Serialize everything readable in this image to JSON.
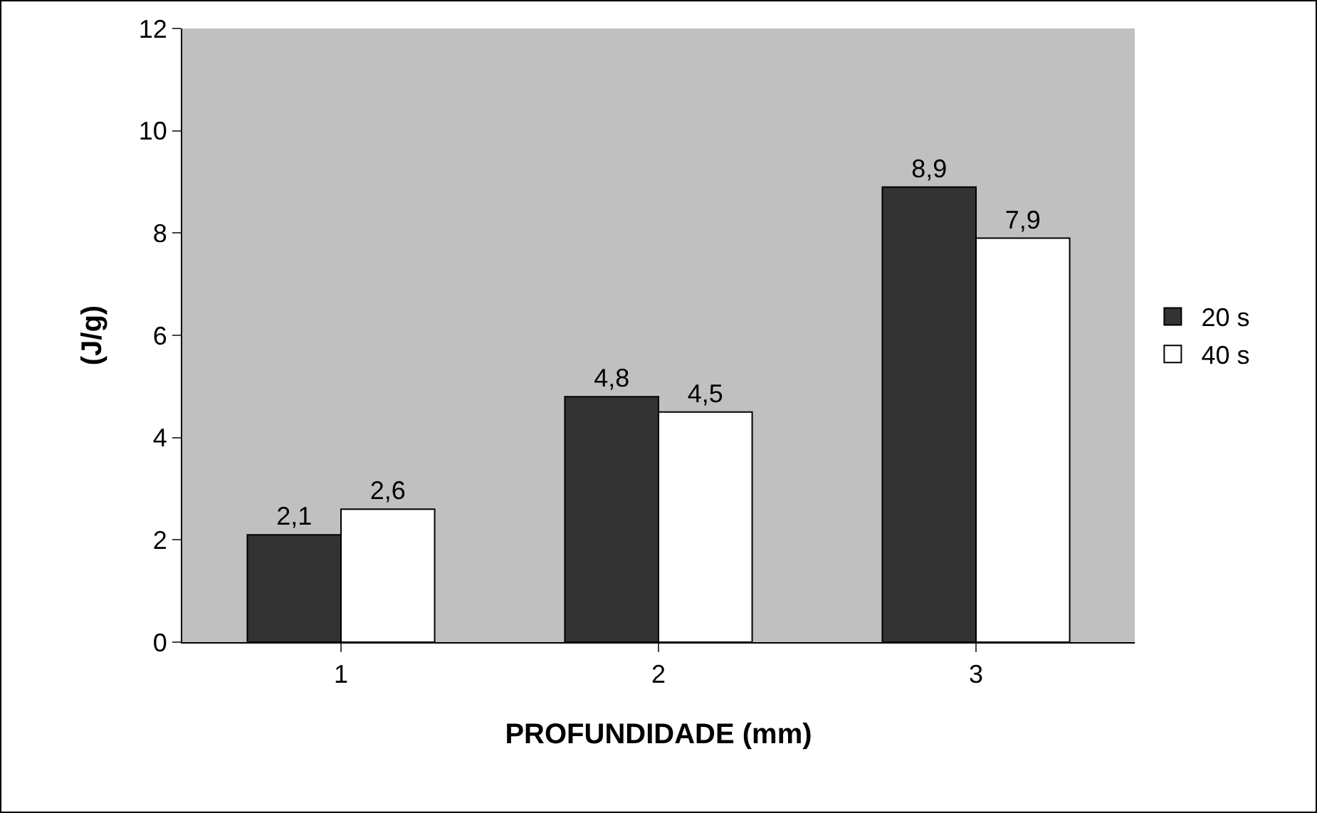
{
  "chart_data": {
    "type": "bar",
    "xlabel": "PROFUNDIDADE (mm)",
    "ylabel": "(J/g)",
    "categories": [
      "1",
      "2",
      "3"
    ],
    "series": [
      {
        "name": "20 s",
        "color": "#333333",
        "values": [
          2.1,
          4.8,
          8.9
        ],
        "value_labels": [
          "2,1",
          "4,8",
          "8,9"
        ]
      },
      {
        "name": "40 s",
        "color": "#ffffff",
        "values": [
          2.6,
          4.5,
          7.9
        ],
        "value_labels": [
          "2,6",
          "4,5",
          "7,9"
        ]
      }
    ],
    "ylim": [
      0,
      12
    ],
    "yticks": [
      0,
      2,
      4,
      6,
      8,
      10,
      12
    ],
    "grid": false,
    "legend": "right"
  }
}
